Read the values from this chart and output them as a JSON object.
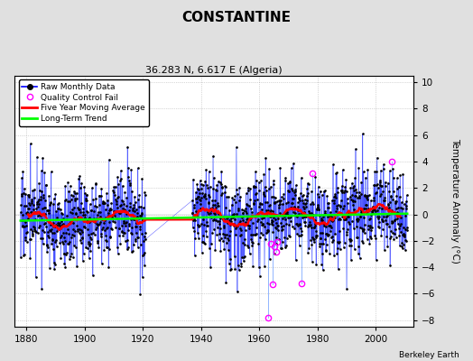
{
  "title": "CONSTANTINE",
  "subtitle": "36.283 N, 6.617 E (Algeria)",
  "ylabel": "Temperature Anomaly (°C)",
  "credit": "Berkeley Earth",
  "xlim": [
    1876,
    2013
  ],
  "ylim": [
    -8.5,
    10.5
  ],
  "yticks": [
    -8,
    -6,
    -4,
    -2,
    0,
    2,
    4,
    6,
    8,
    10
  ],
  "xticks": [
    1880,
    1900,
    1920,
    1940,
    1960,
    1980,
    2000
  ],
  "bg_color": "#e0e0e0",
  "plot_bg_color": "#ffffff",
  "seed": 17,
  "gap_start": 1921,
  "gap_end": 1937,
  "trend_slope": 0.004,
  "trend_intercept": -0.15
}
